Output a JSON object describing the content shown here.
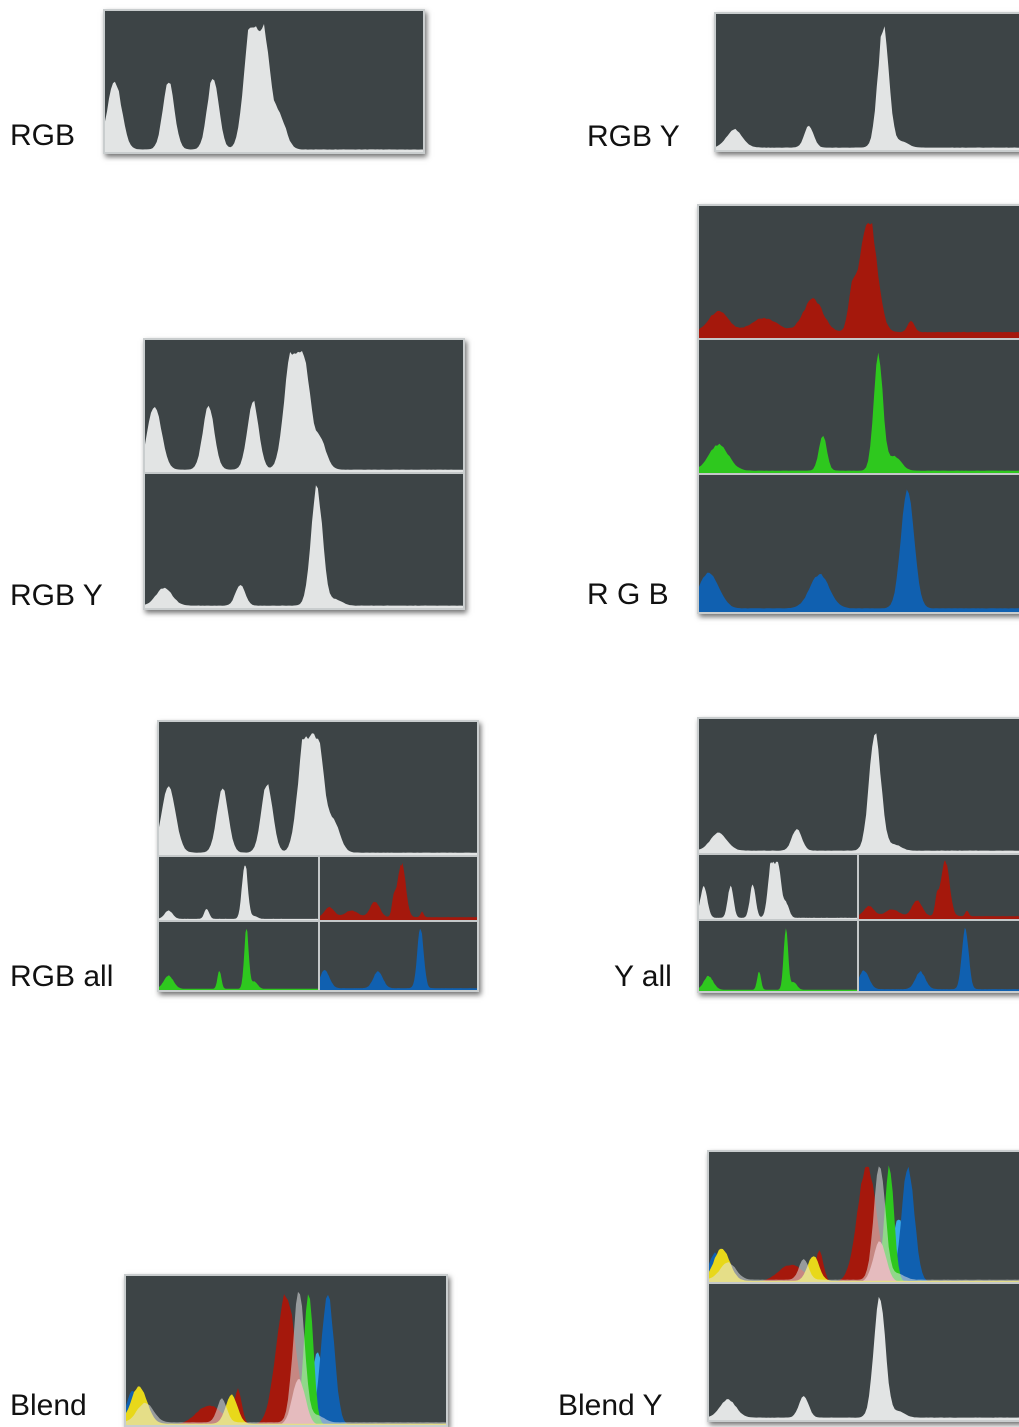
{
  "labels": {
    "rgb": "RGB",
    "rgb_y_top": "RGB Y",
    "rgb_y": "RGB Y",
    "r_g_b": "R G B",
    "rgb_all": "RGB all",
    "y_all": "Y all",
    "blend": "Blend",
    "blend_y": "Blend Y"
  },
  "colors": {
    "background": "#3d4446",
    "luma": "#e2e4e4",
    "red": "#a5180c",
    "green": "#2ec81e",
    "blue": "#1060b0",
    "yellow": "#e8d81a",
    "pink": "#e88a90",
    "cyan": "#38a8e8"
  }
}
